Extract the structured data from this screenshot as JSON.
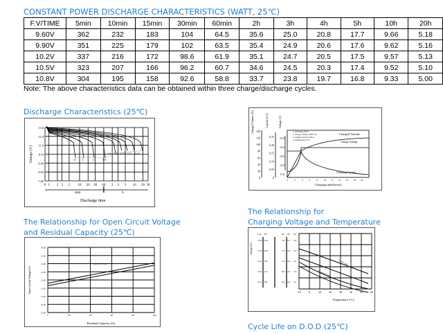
{
  "table": {
    "title": "CONSTANT POWER DISCHARGE CHARACTERISTICS (WATT, 25℃)",
    "headers": [
      "F.V/TIME",
      "5min",
      "10min",
      "15min",
      "30min",
      "60min",
      "2h",
      "3h",
      "4h",
      "5h",
      "10h",
      "20h"
    ],
    "rows": [
      [
        "9.60V",
        "362",
        "232",
        "183",
        "104",
        "64.5",
        "35.6",
        "25.0",
        "20.8",
        "17.7",
        "9.66",
        "5.18"
      ],
      [
        "9.90V",
        "351",
        "225",
        "179",
        "102",
        "63.5",
        "35.4",
        "24.9",
        "20.6",
        "17.6",
        "9.62",
        "5.16"
      ],
      [
        "10.2V",
        "337",
        "216",
        "172",
        "98.6",
        "61.9",
        "35.1",
        "24.7",
        "20.5",
        "17.5",
        "9.57",
        "5.13"
      ],
      [
        "10.5V",
        "323",
        "207",
        "166",
        "96.2",
        "60.7",
        "34.6",
        "24.5",
        "20.3",
        "17.4",
        "9.52",
        "5.10"
      ],
      [
        "10.8V",
        "304",
        "195",
        "158",
        "92.6",
        "58.8",
        "33.7",
        "23.8",
        "19.7",
        "16.8",
        "9.33",
        "5.00"
      ]
    ],
    "note": "Note: The above characteristics data can be obtained within three charge/discharge cycles."
  },
  "discharge": {
    "title": "Discharge Characteristics (25℃)",
    "ylabel": "Voltage (V)",
    "yticks": [
      "13.0",
      "12.0",
      "11.0",
      "10.0",
      "9.00",
      "8.00",
      "7.00"
    ],
    "xticks": [
      "0",
      "1",
      "2",
      "3",
      "5",
      "10",
      "20",
      "30",
      "60",
      "2",
      "3",
      "5",
      "10",
      "20",
      "30"
    ],
    "min_label": "min",
    "h_label": "h",
    "xlabel": "Discharge time",
    "curve_labels": [
      "3C",
      "2C",
      "1C",
      "0.6C",
      "0.4C",
      "0.25C",
      "0.17C",
      "0.1C",
      "0.05C"
    ]
  },
  "charging": {
    "axis1": "Charged Volume (%)",
    "axis2": "Current (CA)",
    "axis3": "Voltage (V)",
    "ticks1": [
      "140",
      "120",
      "100",
      "80",
      "60",
      "40",
      "20",
      "0"
    ],
    "ticks2": [
      "0.25",
      "0.20",
      "0.15",
      "0.10",
      "0.05",
      "0"
    ],
    "ticks3": [
      "15.0",
      "14.0",
      "13.0",
      "12.0",
      "11.0"
    ],
    "xticks": [
      "0",
      "2",
      "4",
      "6",
      "8",
      "10",
      "12",
      "14",
      "16",
      "18",
      "20"
    ],
    "xlabel": "Charging time(hours)",
    "conditions": [
      "1. Discharge 100%",
      "2. Charge voltage 2.40V/cell",
      "3. Charge current 0.20CA",
      "4. Temperature 25°C"
    ],
    "labels": {
      "volume": "Charged Volume",
      "voltage": "Charge Voltage",
      "current": "Charging Current"
    }
  },
  "ocv": {
    "title_line1": "The Relationship for Open Circuit Voltage",
    "title_line2": "and Residual Capacity (25℃)",
    "ylabel": "Open Circuit Voltage (V)",
    "yticks": [
      "14.00",
      "13.50",
      "13.00",
      "12.50",
      "12.00",
      "11.50",
      "11.00",
      "10.50",
      "10.00"
    ],
    "xticks": [
      "0",
      "20",
      "40",
      "60",
      "80",
      "100"
    ],
    "xlabel": "Residual Capacity (%)",
    "annotation": "(25°C/77°F)"
  },
  "chvt": {
    "title_line1": "The Relationship for",
    "title_line2": "Charging Voltage and Temperature",
    "col_heads": [
      "12V",
      "8V",
      "6V",
      "4V",
      "2V"
    ],
    "rows": [
      [
        "15.6",
        "10.4",
        "7.8",
        "5.2",
        "2.6"
      ],
      [
        "15.0",
        "10.0",
        "7.5",
        "5.0",
        "2.5"
      ],
      [
        "14.4",
        "9.6",
        "7.2",
        "4.8",
        "2.4"
      ],
      [
        "13.8",
        "9.2",
        "6.9",
        "4.6",
        "2.3"
      ],
      [
        "13.2",
        "8.8",
        "6.6",
        "4.4",
        "2.2"
      ]
    ],
    "ylabel": "Voltage (V)",
    "xticks": [
      "-10",
      "0",
      "10",
      "20",
      "30",
      "40",
      "50",
      "60"
    ],
    "xlabel": "Temperature (°C)",
    "band_labels": [
      "Cycle Use",
      "Floating Use"
    ]
  },
  "cycle_life": {
    "title": "Cycle Life on D.O.D (25℃)"
  }
}
